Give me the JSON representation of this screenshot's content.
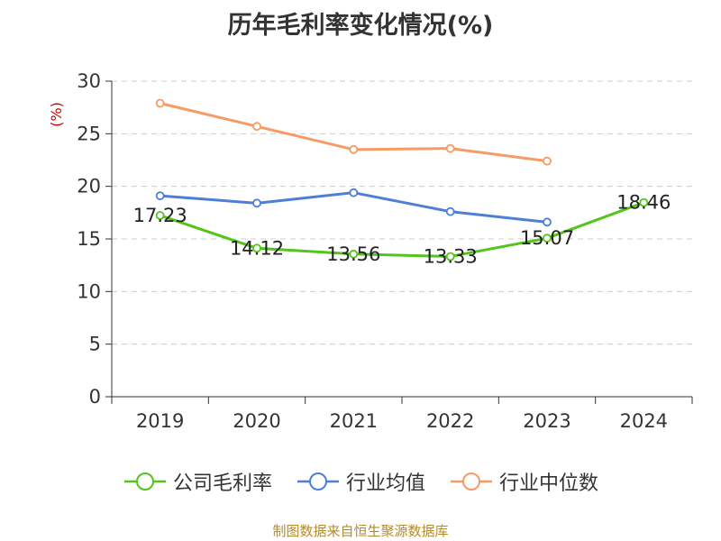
{
  "title": "历年毛利率变化情况(%)",
  "source_note": "制图数据来自恒生聚源数据库",
  "chart_data": {
    "type": "line",
    "title": "历年毛利率变化情况(%)",
    "ylabel": "(%)",
    "xlabel": "",
    "categories": [
      "2019",
      "2020",
      "2021",
      "2022",
      "2023",
      "2024"
    ],
    "ylim": [
      0,
      30
    ],
    "yticks": [
      0,
      5,
      10,
      15,
      20,
      25,
      30
    ],
    "grid": true,
    "legend_position": "bottom",
    "series": [
      {
        "name": "公司毛利率",
        "color": "#52c41a",
        "values": [
          17.23,
          14.12,
          13.56,
          13.33,
          15.07,
          18.46
        ],
        "labels": [
          "17.23",
          "14.12",
          "13.56",
          "13.33",
          "15.07",
          "18.46"
        ]
      },
      {
        "name": "行业均值",
        "color": "#4e7fd8",
        "values": [
          19.1,
          18.4,
          19.4,
          17.6,
          16.6,
          null
        ]
      },
      {
        "name": "行业中位数",
        "color": "#f79a63",
        "values": [
          27.9,
          25.7,
          23.5,
          23.6,
          22.4,
          null
        ]
      }
    ]
  }
}
